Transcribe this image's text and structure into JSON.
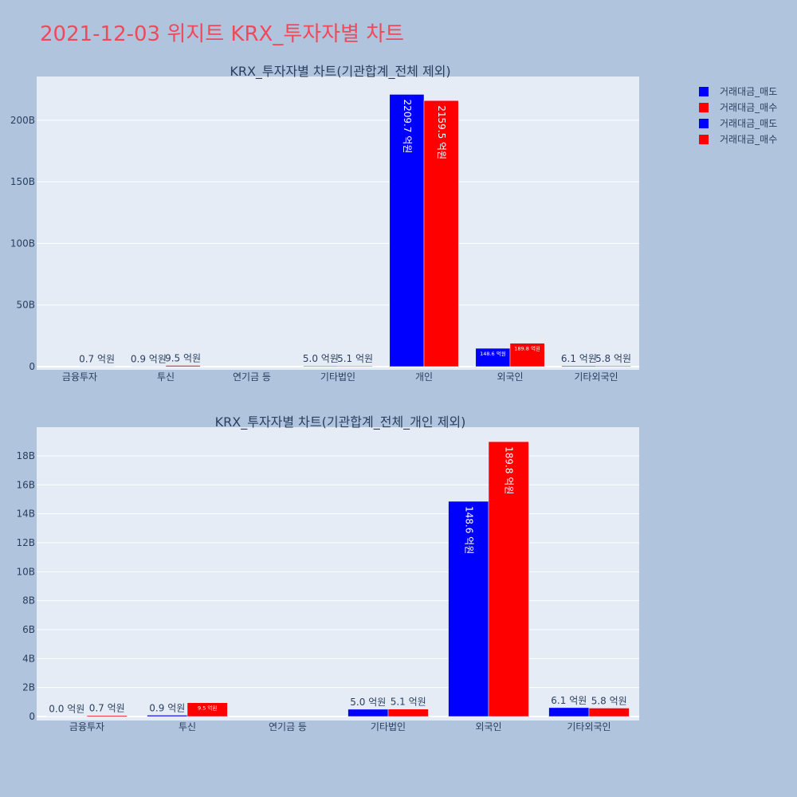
{
  "title": "2021-12-03 위지트 KRX_투자자별 차트",
  "colors": {
    "sell": "#0000ff",
    "buy": "#ff0000",
    "plot_bg": "#e5ecf6",
    "page_bg": "#b0c4de",
    "title": "#ef4a5a"
  },
  "legend": {
    "placement": "top-right",
    "entries": [
      {
        "label": "거래대금_매도",
        "color": "#0000ff"
      },
      {
        "label": "거래대금_매수",
        "color": "#ff0000"
      },
      {
        "label": "거래대금_매도",
        "color": "#0000ff"
      },
      {
        "label": "거래대금_매수",
        "color": "#ff0000"
      }
    ]
  },
  "chart_data": [
    {
      "type": "bar",
      "title": "KRX_투자자별 차트(기관합계_전체 제외)",
      "categories": [
        "금융투자",
        "투신",
        "연기금 등",
        "기타법인",
        "개인",
        "외국인",
        "기타외국인"
      ],
      "series": [
        {
          "name": "거래대금_매도",
          "color": "#0000ff",
          "values": [
            null,
            0.09,
            null,
            0.5,
            220.97,
            14.86,
            0.61
          ],
          "labels": [
            "",
            "0.9 억원",
            "",
            "5.0 억원",
            "2209.7 억원",
            "148.6 억원",
            "6.1 억원"
          ]
        },
        {
          "name": "거래대금_매수",
          "color": "#ff0000",
          "values": [
            0.07,
            0.95,
            null,
            0.51,
            215.95,
            18.98,
            0.58
          ],
          "labels": [
            "0.7 억원",
            "9.5 억원",
            "",
            "5.1 억원",
            "2159.5 억원",
            "189.8 억원",
            "5.8 억원"
          ]
        }
      ],
      "yticks": [
        0,
        50,
        100,
        150,
        200
      ],
      "ytick_labels": [
        "0",
        "50B",
        "100B",
        "150B",
        "200B"
      ],
      "ylim": [
        0,
        235.5
      ],
      "grid": true
    },
    {
      "type": "bar",
      "title": "KRX_투자자별 차트(기관합계_전체_개인 제외)",
      "categories": [
        "금융투자",
        "투신",
        "연기금 등",
        "기타법인",
        "외국인",
        "기타외국인"
      ],
      "series": [
        {
          "name": "거래대금_매도",
          "color": "#0000ff",
          "values": [
            0.0,
            0.09,
            null,
            0.5,
            14.86,
            0.61
          ],
          "labels": [
            "0.0 억원",
            "0.9 억원",
            "",
            "5.0 억원",
            "148.6 억원",
            "6.1 억원"
          ]
        },
        {
          "name": "거래대금_매수",
          "color": "#ff0000",
          "values": [
            0.07,
            0.95,
            null,
            0.51,
            18.98,
            0.58
          ],
          "labels": [
            "0.7 억원",
            "9.5 억원",
            "",
            "5.1 억원",
            "189.8 억원",
            "5.8 억원"
          ]
        }
      ],
      "yticks": [
        0,
        2,
        4,
        6,
        8,
        10,
        12,
        14,
        16,
        18
      ],
      "ytick_labels": [
        "0",
        "2B",
        "4B",
        "6B",
        "8B",
        "10B",
        "12B",
        "14B",
        "16B",
        "18B"
      ],
      "ylim": [
        0,
        19.98
      ],
      "grid": true
    }
  ]
}
